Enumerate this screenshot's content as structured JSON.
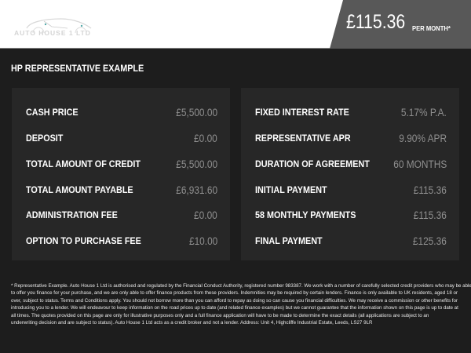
{
  "header": {
    "logo_text": "AUTO HOUSE 1 LTD",
    "monthly_price": "£115.36",
    "per_month_label": "PER MONTH*"
  },
  "section_title": "HP REPRESENTATIVE EXAMPLE",
  "left_panel": [
    {
      "label": "CASH PRICE",
      "value": "£5,500.00"
    },
    {
      "label": "DEPOSIT",
      "value": "£0.00"
    },
    {
      "label": "TOTAL AMOUNT OF CREDIT",
      "value": "£5,500.00"
    },
    {
      "label": "TOTAL AMOUNT PAYABLE",
      "value": "£6,931.60"
    },
    {
      "label": "ADMINISTRATION FEE",
      "value": "£0.00"
    },
    {
      "label": "OPTION TO PURCHASE FEE",
      "value": "£10.00"
    }
  ],
  "right_panel": [
    {
      "label": "FIXED INTEREST RATE",
      "value": "5.17% P.A."
    },
    {
      "label": "REPRESENTATIVE APR",
      "value": "9.90% APR"
    },
    {
      "label": "DURATION OF AGREEMENT",
      "value": "60 MONTHS"
    },
    {
      "label": "INITIAL PAYMENT",
      "value": "£115.36"
    },
    {
      "label": "58 MONTHLY PAYMENTS",
      "value": "£115.36"
    },
    {
      "label": "FINAL PAYMENT",
      "value": "£125.36"
    }
  ],
  "disclaimer": [
    "* Representative Example. Auto House 1 Ltd is authorised and regulated by the Financial Conduct Authority, registered number 983387. We work with a number of carefully selected credit providers who may be able",
    "to offer you finance for your purchase, and we are only able to offer finance products from these providers. Indemnities may be required by certain lenders. Finance is only available to UK residents, aged 18 or",
    "over, subject to status. Terms and Conditions apply. You should not borrow more than you can afford to repay as doing so can cause you financial difficulties. We may receive a commission or other benefits for",
    "introducing you to a lender. We will endeavour to keep information on the road prices up to date (and related finance examples) but we cannot guarantee that the information shown on this page is up to date at",
    "all times. The quotes provided on this page are only for illustrative purposes only and a full finance application will have to be made to determine the exact details (all applications are subject to an",
    "underwriting decision and are subject to status). Auto House 1 Ltd acts as a credit broker and not a lender. Address: Unit 4, Highcliffe Industrial Estate, Leeds, LS27 9LR"
  ]
}
